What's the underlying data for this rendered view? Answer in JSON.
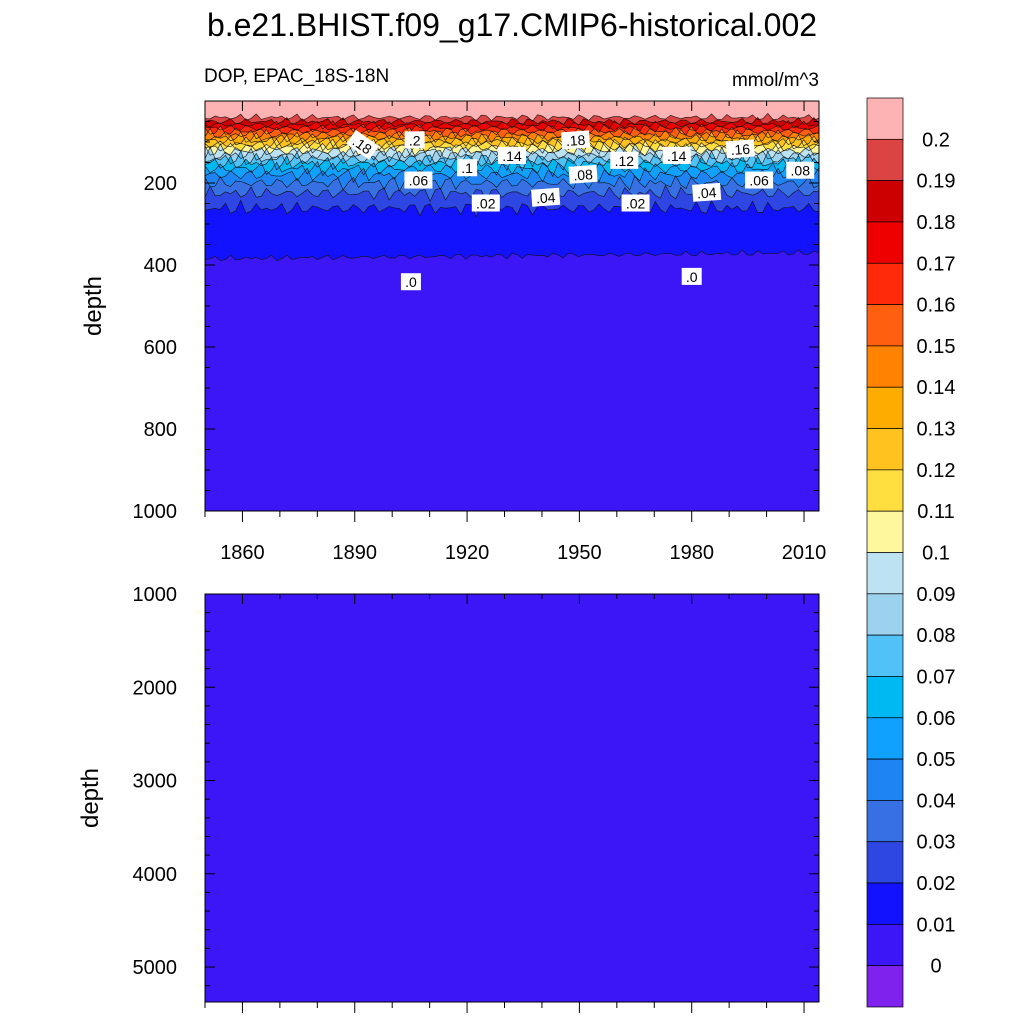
{
  "chart_data": {
    "type": "heatmap",
    "title": "b.e21.BHIST.f09_g17.CMIP6-historical.002",
    "variable_label": "DOP, EPAC_18S-18N",
    "units": "mmol/m^3",
    "panels": [
      {
        "name": "upper",
        "ylabel": "depth",
        "ylim": [
          1000,
          0
        ],
        "yticks": [
          200,
          400,
          600,
          800,
          1000
        ],
        "xlim": [
          1850,
          2014
        ],
        "xticks": [
          1860,
          1890,
          1920,
          1950,
          1980,
          2010
        ],
        "contour_depths": [
          {
            "level": 0.19,
            "depth": 40
          },
          {
            "level": 0.18,
            "depth": 50
          },
          {
            "level": 0.17,
            "depth": 58
          },
          {
            "level": 0.16,
            "depth": 66
          },
          {
            "level": 0.15,
            "depth": 74
          },
          {
            "level": 0.14,
            "depth": 82
          },
          {
            "level": 0.13,
            "depth": 90
          },
          {
            "level": 0.12,
            "depth": 98
          },
          {
            "level": 0.11,
            "depth": 106
          },
          {
            "level": 0.1,
            "depth": 114
          },
          {
            "level": 0.09,
            "depth": 122
          },
          {
            "level": 0.08,
            "depth": 132
          },
          {
            "level": 0.07,
            "depth": 142
          },
          {
            "level": 0.06,
            "depth": 152
          },
          {
            "level": 0.05,
            "depth": 165
          },
          {
            "level": 0.04,
            "depth": 180
          },
          {
            "level": 0.03,
            "depth": 200
          },
          {
            "level": 0.02,
            "depth": 225
          },
          {
            "level": 0.01,
            "depth": 262
          },
          {
            "level": 0.0,
            "depth": 370
          }
        ],
        "contour_labels": [
          {
            "text": ".18",
            "year": 1892,
            "depth": 108
          },
          {
            "text": ".2",
            "year": 1906,
            "depth": 96
          },
          {
            "text": ".14",
            "year": 1932,
            "depth": 134
          },
          {
            "text": ".18",
            "year": 1949,
            "depth": 96
          },
          {
            "text": ".12",
            "year": 1962,
            "depth": 146
          },
          {
            "text": ".14",
            "year": 1976,
            "depth": 134
          },
          {
            "text": ".16",
            "year": 1993,
            "depth": 118
          },
          {
            "text": ".06",
            "year": 1907,
            "depth": 194
          },
          {
            "text": ".1",
            "year": 1920,
            "depth": 164
          },
          {
            "text": ".08",
            "year": 1951,
            "depth": 180
          },
          {
            "text": ".06",
            "year": 1998,
            "depth": 194
          },
          {
            "text": ".08",
            "year": 2009,
            "depth": 170
          },
          {
            "text": ".04",
            "year": 1941,
            "depth": 236
          },
          {
            "text": ".02",
            "year": 1925,
            "depth": 250
          },
          {
            "text": ".02",
            "year": 1965,
            "depth": 250
          },
          {
            "text": ".04",
            "year": 1984,
            "depth": 224
          },
          {
            "text": ".0",
            "year": 1905,
            "depth": 442
          },
          {
            "text": ".0",
            "year": 1980,
            "depth": 429
          }
        ]
      },
      {
        "name": "lower",
        "ylabel": "depth",
        "ylim": [
          5375,
          1000
        ],
        "yticks": [
          1000,
          2000,
          3000,
          4000,
          5000
        ],
        "xlim": [
          1850,
          2014
        ],
        "fill_level": 0.0
      }
    ],
    "colorbar": {
      "labels": [
        "0.2",
        "0.19",
        "0.18",
        "0.17",
        "0.16",
        "0.15",
        "0.14",
        "0.13",
        "0.12",
        "0.11",
        "0.1",
        "0.09",
        "0.08",
        "0.07",
        "0.06",
        "0.05",
        "0.04",
        "0.03",
        "0.02",
        "0.01",
        "0"
      ],
      "colors": [
        "#fdb3b3",
        "#dc4343",
        "#cc0000",
        "#ee0000",
        "#ff2a0a",
        "#ff5f0f",
        "#ff8300",
        "#ffac00",
        "#ffc21f",
        "#ffdf3f",
        "#fff79e",
        "#bde3f3",
        "#9dd2ee",
        "#51c2f7",
        "#00b9f2",
        "#10a1ff",
        "#1e84f4",
        "#3770e2",
        "#2e46e2",
        "#1212ff",
        "#3c16f6",
        "#7f22ee"
      ]
    },
    "grid": false,
    "legend_placement": "right"
  }
}
